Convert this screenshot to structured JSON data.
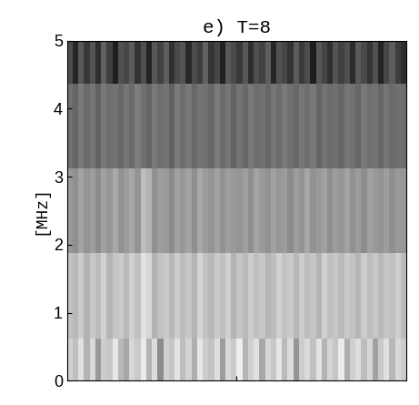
{
  "chart_data": {
    "type": "heatmap",
    "title": "e) T=8",
    "y_label": "[MHz]",
    "xlim": [
      0,
      60
    ],
    "xticks": [
      30
    ],
    "ylim": [
      0,
      5
    ],
    "yticks": [
      0,
      1,
      2,
      3,
      4,
      5
    ],
    "tick_labels": "y",
    "color": "gray",
    "value_range": [
      0,
      1
    ],
    "y_edges": [
      0,
      0.62,
      1.87,
      3.12,
      4.37,
      5
    ],
    "cells": [
      [
        0.82,
        0.75,
        0.88,
        0.7,
        0.85,
        0.6,
        0.8,
        0.78,
        0.9,
        0.72,
        0.65,
        0.84,
        0.79,
        0.92,
        0.7,
        0.86,
        0.55,
        0.81,
        0.77,
        0.89,
        0.74,
        0.83,
        0.68,
        0.91,
        0.8,
        0.76,
        0.87,
        0.62,
        0.85,
        0.79,
        0.93,
        0.71,
        0.82,
        0.88,
        0.66,
        0.84,
        0.78,
        0.9,
        0.73,
        0.86,
        0.58,
        0.8,
        0.85,
        0.75,
        0.89,
        0.7,
        0.83,
        0.77,
        0.92,
        0.68,
        0.81,
        0.87,
        0.74,
        0.84,
        0.63,
        0.79,
        0.88,
        0.72,
        0.85,
        0.8
      ],
      [
        0.76,
        0.72,
        0.8,
        0.7,
        0.78,
        0.74,
        0.82,
        0.71,
        0.77,
        0.79,
        0.73,
        0.81,
        0.75,
        0.88,
        0.84,
        0.7,
        0.76,
        0.79,
        0.72,
        0.8,
        0.74,
        0.78,
        0.71,
        0.83,
        0.76,
        0.72,
        0.79,
        0.75,
        0.81,
        0.7,
        0.77,
        0.73,
        0.8,
        0.75,
        0.78,
        0.71,
        0.74,
        0.82,
        0.76,
        0.79,
        0.72,
        0.8,
        0.74,
        0.77,
        0.7,
        0.81,
        0.75,
        0.78,
        0.73,
        0.79,
        0.76,
        0.71,
        0.8,
        0.74,
        0.78,
        0.72,
        0.77,
        0.75,
        0.81,
        0.73
      ],
      [
        0.6,
        0.56,
        0.64,
        0.58,
        0.62,
        0.55,
        0.63,
        0.59,
        0.66,
        0.57,
        0.61,
        0.65,
        0.58,
        0.74,
        0.7,
        0.57,
        0.62,
        0.6,
        0.55,
        0.63,
        0.59,
        0.64,
        0.56,
        0.66,
        0.61,
        0.58,
        0.63,
        0.57,
        0.62,
        0.6,
        0.58,
        0.62,
        0.56,
        0.64,
        0.6,
        0.57,
        0.63,
        0.59,
        0.61,
        0.55,
        0.62,
        0.58,
        0.65,
        0.57,
        0.6,
        0.63,
        0.56,
        0.61,
        0.59,
        0.64,
        0.57,
        0.61,
        0.55,
        0.63,
        0.6,
        0.58,
        0.62,
        0.56,
        0.6,
        0.59
      ],
      [
        0.44,
        0.4,
        0.48,
        0.42,
        0.46,
        0.39,
        0.47,
        0.43,
        0.45,
        0.41,
        0.46,
        0.42,
        0.49,
        0.44,
        0.4,
        0.47,
        0.43,
        0.45,
        0.38,
        0.48,
        0.43,
        0.47,
        0.41,
        0.45,
        0.44,
        0.4,
        0.48,
        0.42,
        0.46,
        0.39,
        0.45,
        0.41,
        0.47,
        0.43,
        0.44,
        0.4,
        0.46,
        0.42,
        0.48,
        0.44,
        0.41,
        0.46,
        0.43,
        0.47,
        0.39,
        0.45,
        0.42,
        0.44,
        0.4,
        0.46,
        0.44,
        0.4,
        0.47,
        0.43,
        0.45,
        0.41,
        0.46,
        0.42,
        0.44,
        0.43
      ],
      [
        0.3,
        0.15,
        0.35,
        0.22,
        0.33,
        0.18,
        0.38,
        0.25,
        0.12,
        0.32,
        0.28,
        0.36,
        0.2,
        0.31,
        0.14,
        0.34,
        0.26,
        0.37,
        0.19,
        0.29,
        0.33,
        0.16,
        0.3,
        0.24,
        0.38,
        0.21,
        0.27,
        0.13,
        0.35,
        0.29,
        0.22,
        0.34,
        0.18,
        0.31,
        0.26,
        0.37,
        0.15,
        0.32,
        0.28,
        0.2,
        0.36,
        0.23,
        0.3,
        0.12,
        0.34,
        0.27,
        0.19,
        0.33,
        0.25,
        0.31,
        0.17,
        0.35,
        0.29,
        0.21,
        0.32,
        0.14,
        0.28,
        0.36,
        0.24,
        0.18
      ]
    ]
  }
}
